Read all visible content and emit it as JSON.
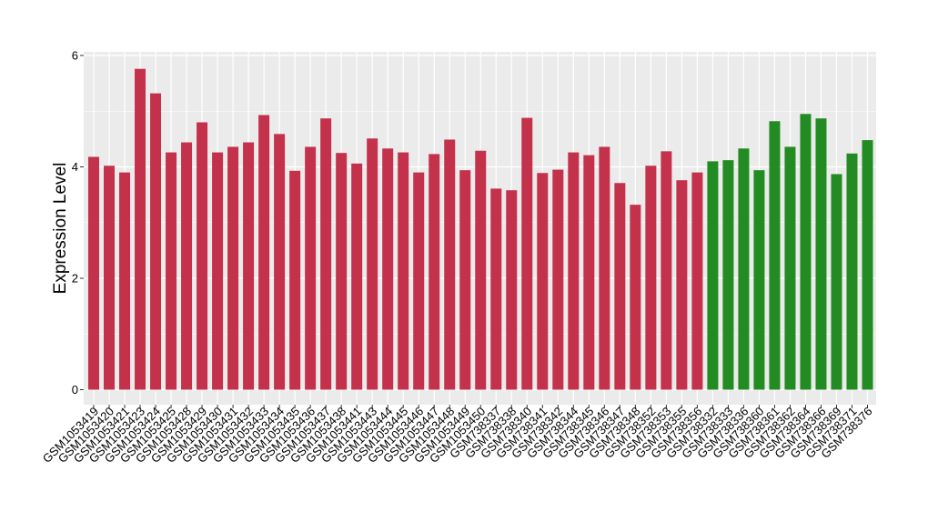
{
  "chart_data": {
    "type": "bar",
    "title": "",
    "xlabel": "",
    "ylabel": "Expression Level",
    "ylim": [
      0,
      6
    ],
    "yticks": [
      0,
      2,
      4,
      6
    ],
    "grid": true,
    "legend": "none",
    "colors": {
      "group1": "#c4314b",
      "group2": "#228b22",
      "panel_background": "#ebebeb",
      "grid_major": "#ffffff",
      "axis_text": "#000000"
    },
    "categories": [
      "GSM1053419",
      "GSM1053420",
      "GSM1053421",
      "GSM1053423",
      "GSM1053424",
      "GSM1053425",
      "GSM1053428",
      "GSM1053429",
      "GSM1053430",
      "GSM1053431",
      "GSM1053432",
      "GSM1053433",
      "GSM1053434",
      "GSM1053435",
      "GSM1053436",
      "GSM1053437",
      "GSM1053438",
      "GSM1053441",
      "GSM1053443",
      "GSM1053444",
      "GSM1053445",
      "GSM1053446",
      "GSM1053447",
      "GSM1053448",
      "GSM1053449",
      "GSM1053450",
      "GSM738337",
      "GSM738338",
      "GSM738340",
      "GSM738341",
      "GSM738342",
      "GSM738344",
      "GSM738345",
      "GSM738346",
      "GSM738347",
      "GSM738348",
      "GSM738352",
      "GSM738353",
      "GSM738355",
      "GSM738356",
      "GSM738332",
      "GSM738333",
      "GSM738336",
      "GSM738360",
      "GSM738361",
      "GSM738362",
      "GSM738364",
      "GSM738366",
      "GSM738369",
      "GSM738371",
      "GSM738376"
    ],
    "values": [
      4.18,
      4.02,
      3.9,
      5.76,
      5.32,
      4.26,
      4.44,
      4.8,
      4.26,
      4.36,
      4.44,
      4.93,
      4.59,
      3.93,
      4.36,
      4.87,
      4.25,
      4.06,
      4.51,
      4.33,
      4.26,
      3.9,
      4.23,
      4.49,
      3.94,
      4.29,
      3.61,
      3.58,
      4.88,
      3.89,
      3.95,
      4.26,
      4.21,
      4.36,
      3.71,
      3.32,
      4.02,
      4.28,
      3.76,
      3.9,
      4.1,
      4.12,
      4.33,
      3.94,
      4.82,
      4.36,
      4.95,
      4.87,
      3.87,
      4.24,
      4.48
    ],
    "groups": [
      "group1",
      "group1",
      "group1",
      "group1",
      "group1",
      "group1",
      "group1",
      "group1",
      "group1",
      "group1",
      "group1",
      "group1",
      "group1",
      "group1",
      "group1",
      "group1",
      "group1",
      "group1",
      "group1",
      "group1",
      "group1",
      "group1",
      "group1",
      "group1",
      "group1",
      "group1",
      "group1",
      "group1",
      "group1",
      "group1",
      "group1",
      "group1",
      "group1",
      "group1",
      "group1",
      "group1",
      "group1",
      "group1",
      "group1",
      "group1",
      "group2",
      "group2",
      "group2",
      "group2",
      "group2",
      "group2",
      "group2",
      "group2",
      "group2",
      "group2",
      "group2"
    ]
  }
}
